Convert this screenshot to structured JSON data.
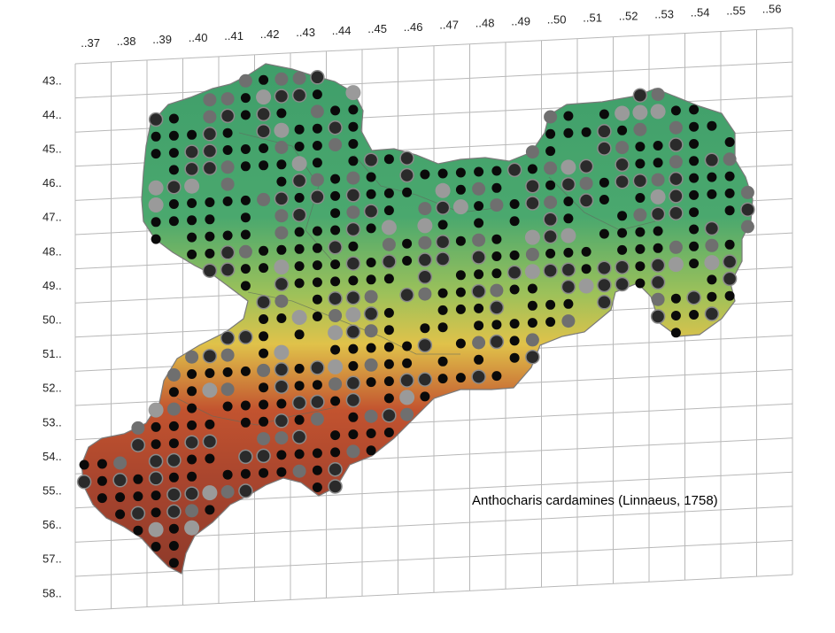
{
  "map": {
    "species_label": "Anthocharis cardamines (Linnaeus, 1758)",
    "column_labels": [
      "..37",
      "..38",
      "..39",
      "..40",
      "..41",
      "..42",
      "..43",
      "..44",
      "..45",
      "..46",
      "..47",
      "..48",
      "..49",
      "..50",
      "..51",
      "..52",
      "..53",
      "..54",
      "..55",
      "..56"
    ],
    "row_labels": [
      "43..",
      "44..",
      "45..",
      "46..",
      "47..",
      "48..",
      "49..",
      "50..",
      "51..",
      "52..",
      "53..",
      "54..",
      "55..",
      "56..",
      "57..",
      "58.."
    ],
    "record_classes": [
      {
        "name": "black",
        "color": "#0a0a0a"
      },
      {
        "name": "dark-ringed",
        "color": "#2a2a2a"
      },
      {
        "name": "grey",
        "color": "#6f6f6f"
      },
      {
        "name": "light-grey",
        "color": "#9a9a9a"
      }
    ],
    "relief_colors": {
      "low": "#3f9e6a",
      "mid": "#d9c24a",
      "high": "#b0452e",
      "peak": "#cfcfcf"
    }
  }
}
